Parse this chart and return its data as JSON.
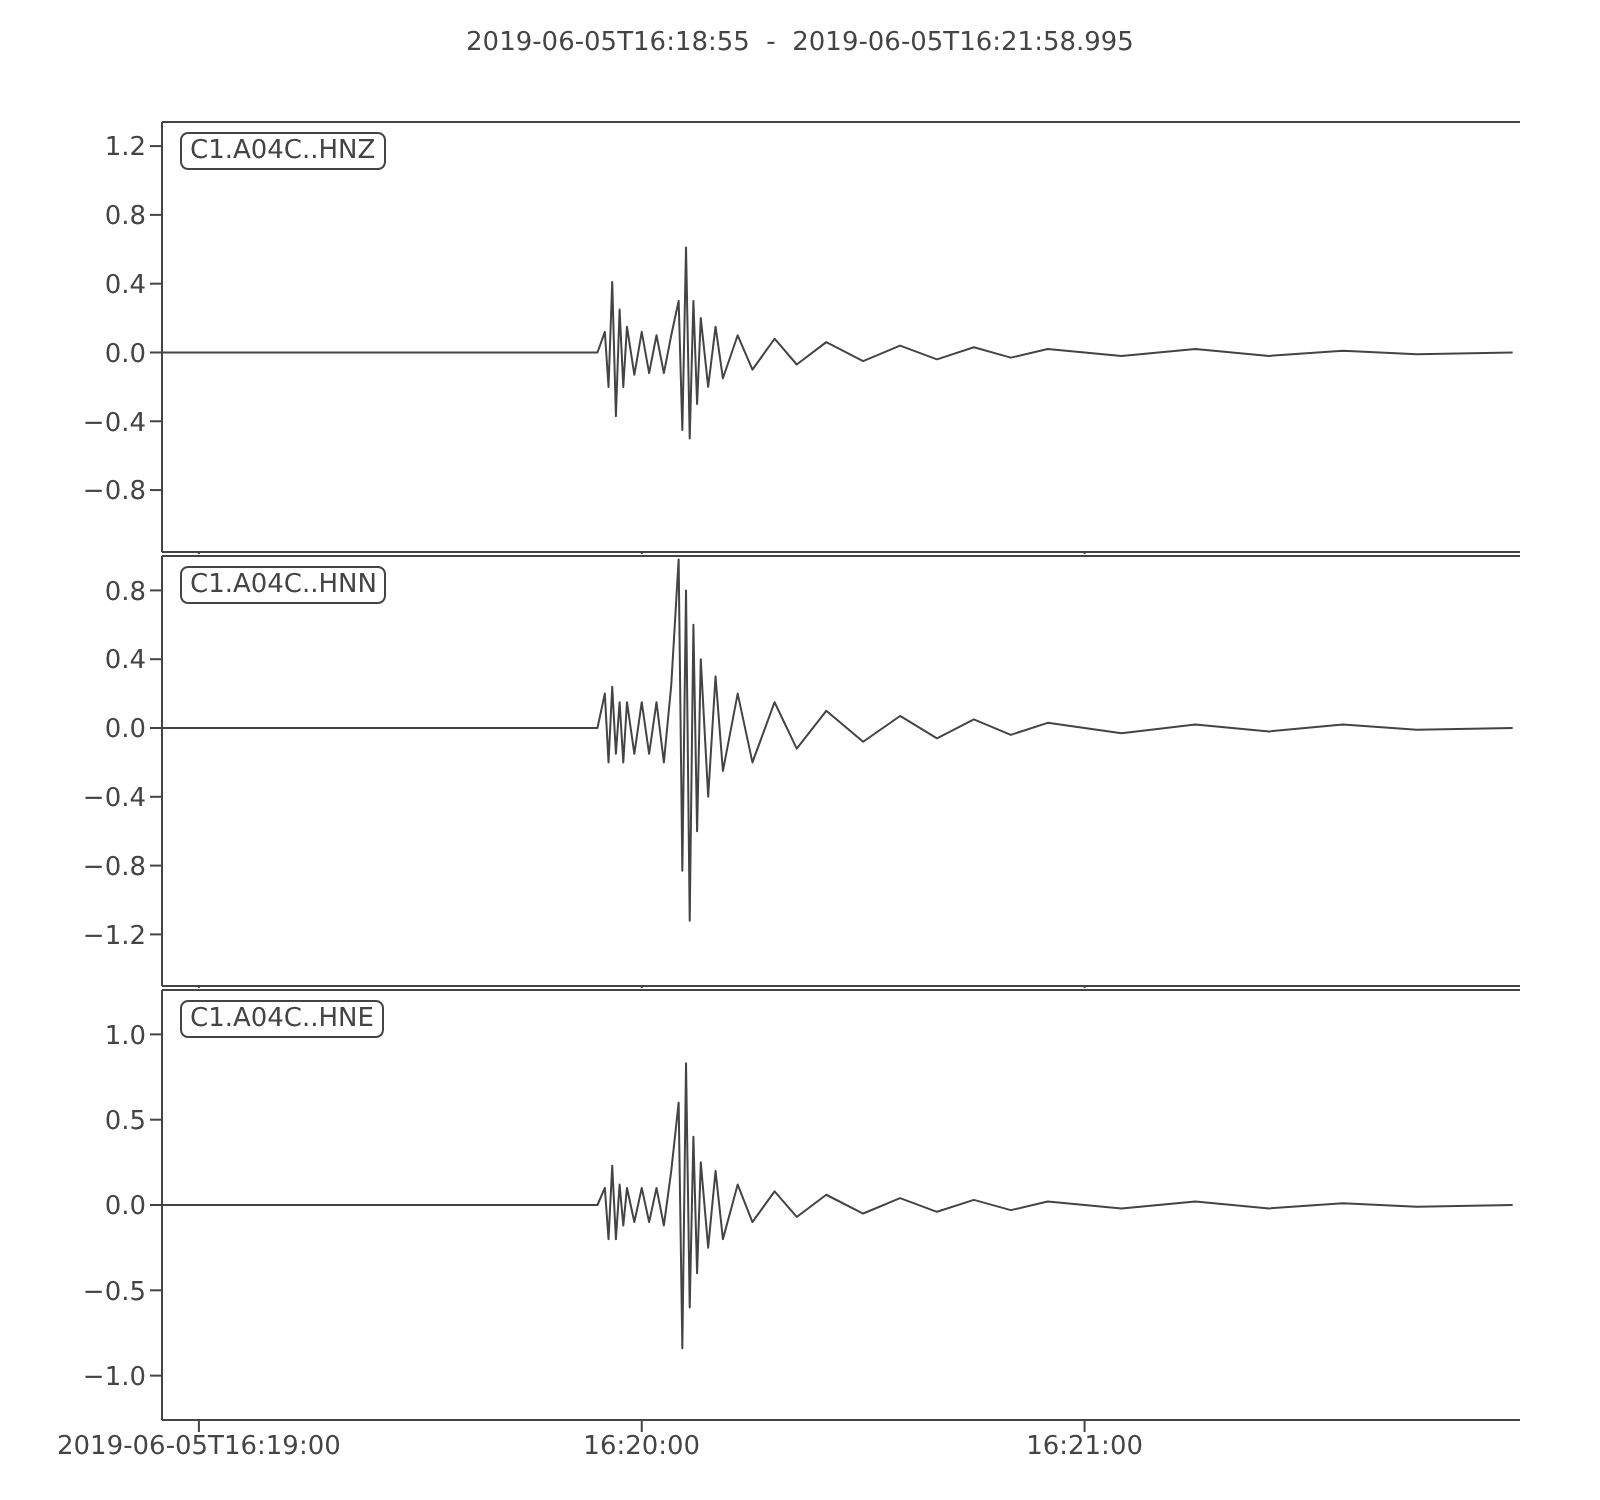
{
  "chart_data": [
    {
      "type": "line",
      "title": "2019-06-05T16:18:55  -  2019-06-05T16:21:58.995",
      "annotations": [
        "C1.A04C..HNZ"
      ],
      "color": "#444444",
      "grid": false,
      "legend": false,
      "marker": "none",
      "line_style": "solid",
      "tick_labels": "y",
      "x": [
        "2019-06-05T16:18:55",
        "2019-06-05T16:19:54",
        "2019-06-05T16:19:55",
        "2019-06-05T16:19:55.5",
        "2019-06-05T16:19:56",
        "2019-06-05T16:19:56.5",
        "2019-06-05T16:19:57",
        "2019-06-05T16:19:57.5",
        "2019-06-05T16:19:58",
        "2019-06-05T16:19:59",
        "2019-06-05T16:20:00",
        "2019-06-05T16:20:01",
        "2019-06-05T16:20:02",
        "2019-06-05T16:20:03",
        "2019-06-05T16:20:04",
        "2019-06-05T16:20:05",
        "2019-06-05T16:20:05.5",
        "2019-06-05T16:20:06",
        "2019-06-05T16:20:06.5",
        "2019-06-05T16:20:07",
        "2019-06-05T16:20:07.5",
        "2019-06-05T16:20:08",
        "2019-06-05T16:20:09",
        "2019-06-05T16:20:10",
        "2019-06-05T16:20:11",
        "2019-06-05T16:20:13",
        "2019-06-05T16:20:15",
        "2019-06-05T16:20:18",
        "2019-06-05T16:20:21",
        "2019-06-05T16:20:25",
        "2019-06-05T16:20:30",
        "2019-06-05T16:20:35",
        "2019-06-05T16:20:40",
        "2019-06-05T16:20:45",
        "2019-06-05T16:20:50",
        "2019-06-05T16:20:55",
        "2019-06-05T16:21:05",
        "2019-06-05T16:21:15",
        "2019-06-05T16:21:25",
        "2019-06-05T16:21:35",
        "2019-06-05T16:21:45",
        "2019-06-05T16:21:58"
      ],
      "values": [
        0,
        0,
        0.12,
        -0.2,
        0.41,
        -0.37,
        0.25,
        -0.2,
        0.15,
        -0.13,
        0.12,
        -0.12,
        0.1,
        -0.12,
        0.1,
        0.3,
        -0.45,
        0.61,
        -0.5,
        0.3,
        -0.3,
        0.2,
        -0.2,
        0.15,
        -0.15,
        0.1,
        -0.1,
        0.08,
        -0.07,
        0.06,
        -0.05,
        0.04,
        -0.04,
        0.03,
        -0.03,
        0.02,
        -0.02,
        0.02,
        -0.02,
        0.01,
        -0.01,
        0
      ],
      "xlim": [
        "2019-06-05T16:18:55",
        "2019-06-05T16:21:58.995"
      ],
      "xticks": [
        {
          "value": "2019-06-05T16:19:00",
          "label": null
        },
        {
          "value": "2019-06-05T16:20:00",
          "label": null
        },
        {
          "value": "2019-06-05T16:21:00",
          "label": null
        }
      ],
      "ylim": [
        -1.16,
        1.34
      ],
      "yticks": [
        1.2,
        0.8,
        0.4,
        {
          "value": 0,
          "label": "0.0"
        },
        {
          "value": -0.4,
          "label": "−0.4"
        },
        {
          "value": -0.8,
          "label": "−0.8"
        }
      ]
    },
    {
      "type": "line",
      "annotations": [
        "C1.A04C..HNN"
      ],
      "color": "#444444",
      "grid": false,
      "legend": false,
      "marker": "none",
      "line_style": "solid",
      "tick_labels": "y",
      "x": [
        "2019-06-05T16:18:55",
        "2019-06-05T16:19:54",
        "2019-06-05T16:19:55",
        "2019-06-05T16:19:55.5",
        "2019-06-05T16:19:56",
        "2019-06-05T16:19:56.5",
        "2019-06-05T16:19:57",
        "2019-06-05T16:19:57.5",
        "2019-06-05T16:19:58",
        "2019-06-05T16:19:59",
        "2019-06-05T16:20:00",
        "2019-06-05T16:20:01",
        "2019-06-05T16:20:02",
        "2019-06-05T16:20:03",
        "2019-06-05T16:20:04",
        "2019-06-05T16:20:05",
        "2019-06-05T16:20:05.5",
        "2019-06-05T16:20:06",
        "2019-06-05T16:20:06.5",
        "2019-06-05T16:20:07",
        "2019-06-05T16:20:07.5",
        "2019-06-05T16:20:08",
        "2019-06-05T16:20:09",
        "2019-06-05T16:20:10",
        "2019-06-05T16:20:11",
        "2019-06-05T16:20:13",
        "2019-06-05T16:20:15",
        "2019-06-05T16:20:18",
        "2019-06-05T16:20:21",
        "2019-06-05T16:20:25",
        "2019-06-05T16:20:30",
        "2019-06-05T16:20:35",
        "2019-06-05T16:20:40",
        "2019-06-05T16:20:45",
        "2019-06-05T16:20:50",
        "2019-06-05T16:20:55",
        "2019-06-05T16:21:05",
        "2019-06-05T16:21:15",
        "2019-06-05T16:21:25",
        "2019-06-05T16:21:35",
        "2019-06-05T16:21:45",
        "2019-06-05T16:21:58"
      ],
      "values": [
        0,
        0,
        0.2,
        -0.2,
        0.24,
        -0.15,
        0.15,
        -0.2,
        0.15,
        -0.15,
        0.15,
        -0.15,
        0.15,
        -0.2,
        0.25,
        0.98,
        -0.83,
        0.8,
        -1.12,
        0.6,
        -0.6,
        0.4,
        -0.4,
        0.3,
        -0.25,
        0.2,
        -0.2,
        0.15,
        -0.12,
        0.1,
        -0.08,
        0.07,
        -0.06,
        0.05,
        -0.04,
        0.03,
        -0.03,
        0.02,
        -0.02,
        0.02,
        -0.01,
        0
      ],
      "xlim": [
        "2019-06-05T16:18:55",
        "2019-06-05T16:21:58.995"
      ],
      "xticks": [
        {
          "value": "2019-06-05T16:19:00",
          "label": null
        },
        {
          "value": "2019-06-05T16:20:00",
          "label": null
        },
        {
          "value": "2019-06-05T16:21:00",
          "label": null
        }
      ],
      "ylim": [
        -1.5,
        1.0
      ],
      "yticks": [
        0.8,
        0.4,
        {
          "value": 0,
          "label": "0.0"
        },
        {
          "value": -0.4,
          "label": "−0.4"
        },
        {
          "value": -0.8,
          "label": "−0.8"
        },
        {
          "value": -1.2,
          "label": "−1.2"
        }
      ]
    },
    {
      "type": "line",
      "annotations": [
        "C1.A04C..HNE"
      ],
      "color": "#444444",
      "grid": false,
      "legend": false,
      "marker": "none",
      "line_style": "solid",
      "x": [
        "2019-06-05T16:18:55",
        "2019-06-05T16:19:54",
        "2019-06-05T16:19:55",
        "2019-06-05T16:19:55.5",
        "2019-06-05T16:19:56",
        "2019-06-05T16:19:56.5",
        "2019-06-05T16:19:57",
        "2019-06-05T16:19:57.5",
        "2019-06-05T16:19:58",
        "2019-06-05T16:19:59",
        "2019-06-05T16:20:00",
        "2019-06-05T16:20:01",
        "2019-06-05T16:20:02",
        "2019-06-05T16:20:03",
        "2019-06-05T16:20:04",
        "2019-06-05T16:20:05",
        "2019-06-05T16:20:05.5",
        "2019-06-05T16:20:06",
        "2019-06-05T16:20:06.5",
        "2019-06-05T16:20:07",
        "2019-06-05T16:20:07.5",
        "2019-06-05T16:20:08",
        "2019-06-05T16:20:09",
        "2019-06-05T16:20:10",
        "2019-06-05T16:20:11",
        "2019-06-05T16:20:13",
        "2019-06-05T16:20:15",
        "2019-06-05T16:20:18",
        "2019-06-05T16:20:21",
        "2019-06-05T16:20:25",
        "2019-06-05T16:20:30",
        "2019-06-05T16:20:35",
        "2019-06-05T16:20:40",
        "2019-06-05T16:20:45",
        "2019-06-05T16:20:50",
        "2019-06-05T16:20:55",
        "2019-06-05T16:21:05",
        "2019-06-05T16:21:15",
        "2019-06-05T16:21:25",
        "2019-06-05T16:21:35",
        "2019-06-05T16:21:45",
        "2019-06-05T16:21:58"
      ],
      "values": [
        0,
        0,
        0.1,
        -0.2,
        0.23,
        -0.2,
        0.12,
        -0.12,
        0.1,
        -0.1,
        0.1,
        -0.1,
        0.1,
        -0.12,
        0.2,
        0.6,
        -0.84,
        0.83,
        -0.6,
        0.4,
        -0.4,
        0.25,
        -0.25,
        0.2,
        -0.2,
        0.12,
        -0.1,
        0.08,
        -0.07,
        0.06,
        -0.05,
        0.04,
        -0.04,
        0.03,
        -0.03,
        0.02,
        -0.02,
        0.02,
        -0.02,
        0.01,
        -0.01,
        0
      ],
      "xlim": [
        "2019-06-05T16:18:55",
        "2019-06-05T16:21:58.995"
      ],
      "xticks": [
        {
          "value": "2019-06-05T16:19:00",
          "label": "2019-06-05T16:19:00"
        },
        {
          "value": "2019-06-05T16:20:00",
          "label": "16:20:00"
        },
        {
          "value": "2019-06-05T16:21:00",
          "label": "16:21:00"
        }
      ],
      "ylim": [
        -1.26,
        1.26
      ],
      "yticks": [
        {
          "value": 1.0,
          "label": "1.0"
        },
        0.5,
        {
          "value": 0,
          "label": "0.0"
        },
        {
          "value": -0.5,
          "label": "−0.5"
        },
        {
          "value": -1.0,
          "label": "−1.0"
        }
      ]
    }
  ]
}
